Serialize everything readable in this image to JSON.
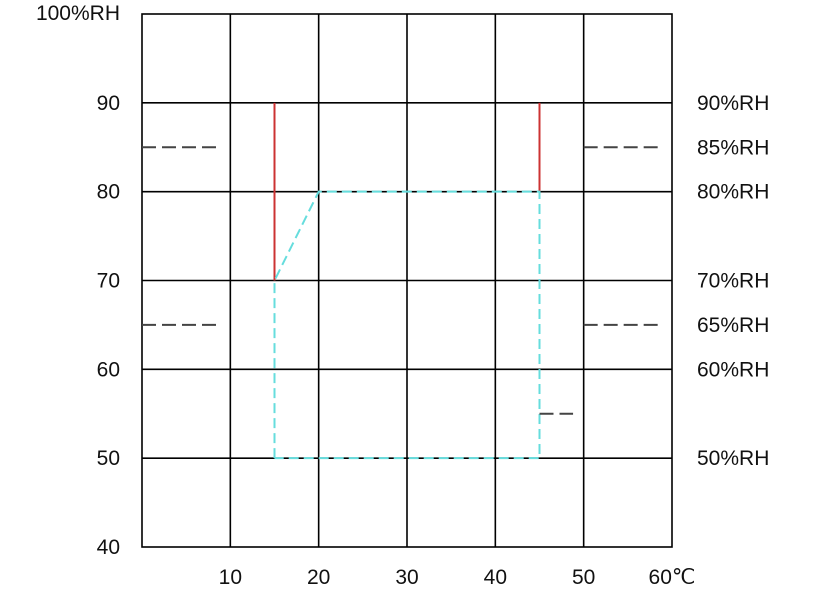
{
  "chart_data": {
    "type": "line",
    "title": "",
    "xlim": [
      0,
      60
    ],
    "ylim": [
      40,
      100
    ],
    "x_ticks": [
      {
        "value": 10,
        "label": "10"
      },
      {
        "value": 20,
        "label": "20"
      },
      {
        "value": 30,
        "label": "30"
      },
      {
        "value": 40,
        "label": "40"
      },
      {
        "value": 50,
        "label": "50"
      },
      {
        "value": 60,
        "label": "60℃"
      }
    ],
    "y_ticks_left": [
      {
        "value": 100,
        "label": "100%RH"
      },
      {
        "value": 90,
        "label": "90"
      },
      {
        "value": 80,
        "label": "80"
      },
      {
        "value": 70,
        "label": "70"
      },
      {
        "value": 60,
        "label": "60"
      },
      {
        "value": 50,
        "label": "50"
      },
      {
        "value": 40,
        "label": "40"
      }
    ],
    "y_ticks_right": [
      {
        "value": 90,
        "label": "90%RH"
      },
      {
        "value": 85,
        "label": "85%RH"
      },
      {
        "value": 80,
        "label": "80%RH"
      },
      {
        "value": 70,
        "label": "70%RH"
      },
      {
        "value": 65,
        "label": "65%RH"
      },
      {
        "value": 60,
        "label": "60%RH"
      },
      {
        "value": 50,
        "label": "50%RH"
      }
    ],
    "grid": true,
    "series": [
      {
        "color": "#cc3333",
        "style": "solid",
        "segments": [
          [
            [
              15,
              90
            ],
            [
              15,
              70
            ]
          ],
          [
            [
              45,
              90
            ],
            [
              45,
              80
            ]
          ]
        ]
      },
      {
        "color": "#66dddd",
        "style": "dashed",
        "points": [
          [
            15,
            50
          ],
          [
            15,
            70
          ],
          [
            20,
            80
          ],
          [
            45,
            80
          ],
          [
            45,
            50
          ],
          [
            15,
            50
          ]
        ]
      },
      {
        "color": "#444444",
        "style": "dashed",
        "segments": [
          [
            [
              0,
              85
            ],
            [
              8.5,
              85
            ]
          ],
          [
            [
              50,
              85
            ],
            [
              58.5,
              85
            ]
          ],
          [
            [
              0,
              65
            ],
            [
              8.7,
              65
            ]
          ],
          [
            [
              50,
              65
            ],
            [
              58.5,
              65
            ]
          ],
          [
            [
              45,
              55
            ],
            [
              48.8,
              55
            ]
          ]
        ]
      }
    ]
  }
}
